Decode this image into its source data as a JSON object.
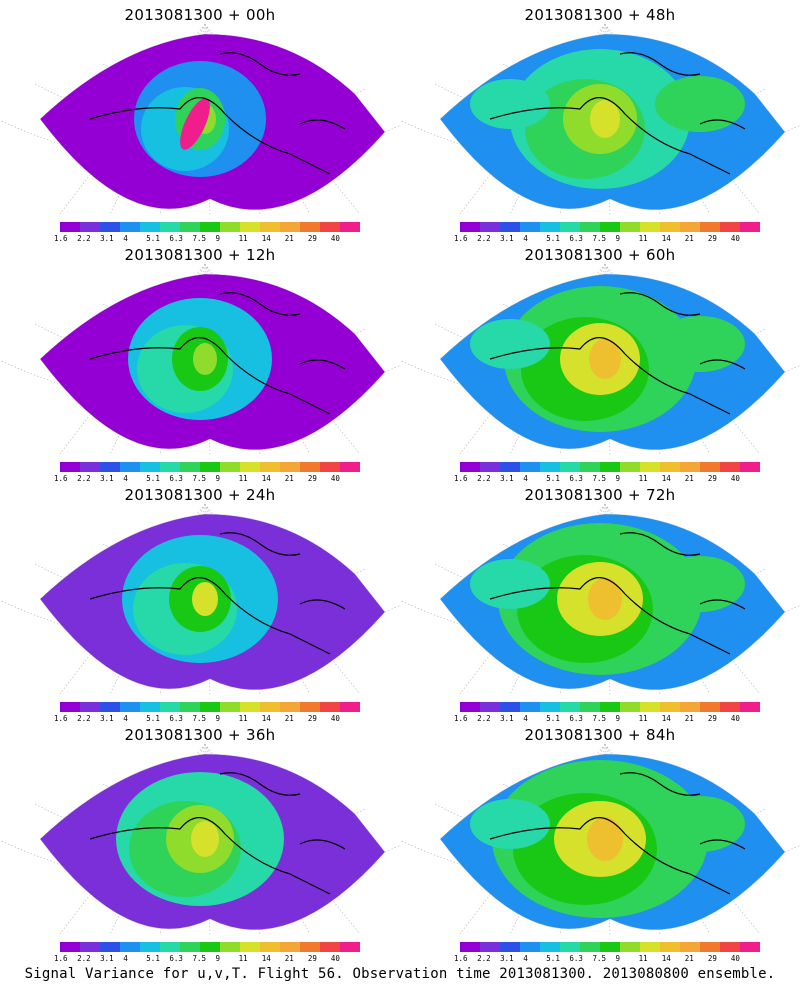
{
  "colors": {
    "legend": [
      "#9400d3",
      "#7b2fd8",
      "#2a52e6",
      "#1f8ff0",
      "#17c0e0",
      "#27d8a8",
      "#2fd35a",
      "#19c815",
      "#8fdc2d",
      "#d6e12c",
      "#eebf2f",
      "#f4a637",
      "#f0782f",
      "#ee4545",
      "#f01e8c"
    ],
    "coast": "#000000",
    "grid": "#b0b0b0"
  },
  "legend_labels": [
    "1.6",
    "2.2",
    "3.1",
    "4",
    "5.1",
    "6.3",
    "7.5",
    "9",
    "11",
    "14",
    "21",
    "29",
    "40"
  ],
  "panels": [
    {
      "title": "2013081300  +  00h",
      "intensity": 1
    },
    {
      "title": "2013081300  +  48h",
      "intensity": 5
    },
    {
      "title": "2013081300  +  12h",
      "intensity": 2
    },
    {
      "title": "2013081300  +  60h",
      "intensity": 6
    },
    {
      "title": "2013081300  +  24h",
      "intensity": 3
    },
    {
      "title": "2013081300  +  72h",
      "intensity": 7
    },
    {
      "title": "2013081300  +  36h",
      "intensity": 4
    },
    {
      "title": "2013081300  +  84h",
      "intensity": 8
    }
  ],
  "footer": "Signal Variance for u,v,T. Flight 56. Observation time 2013081300. 2013080800 ensemble."
}
